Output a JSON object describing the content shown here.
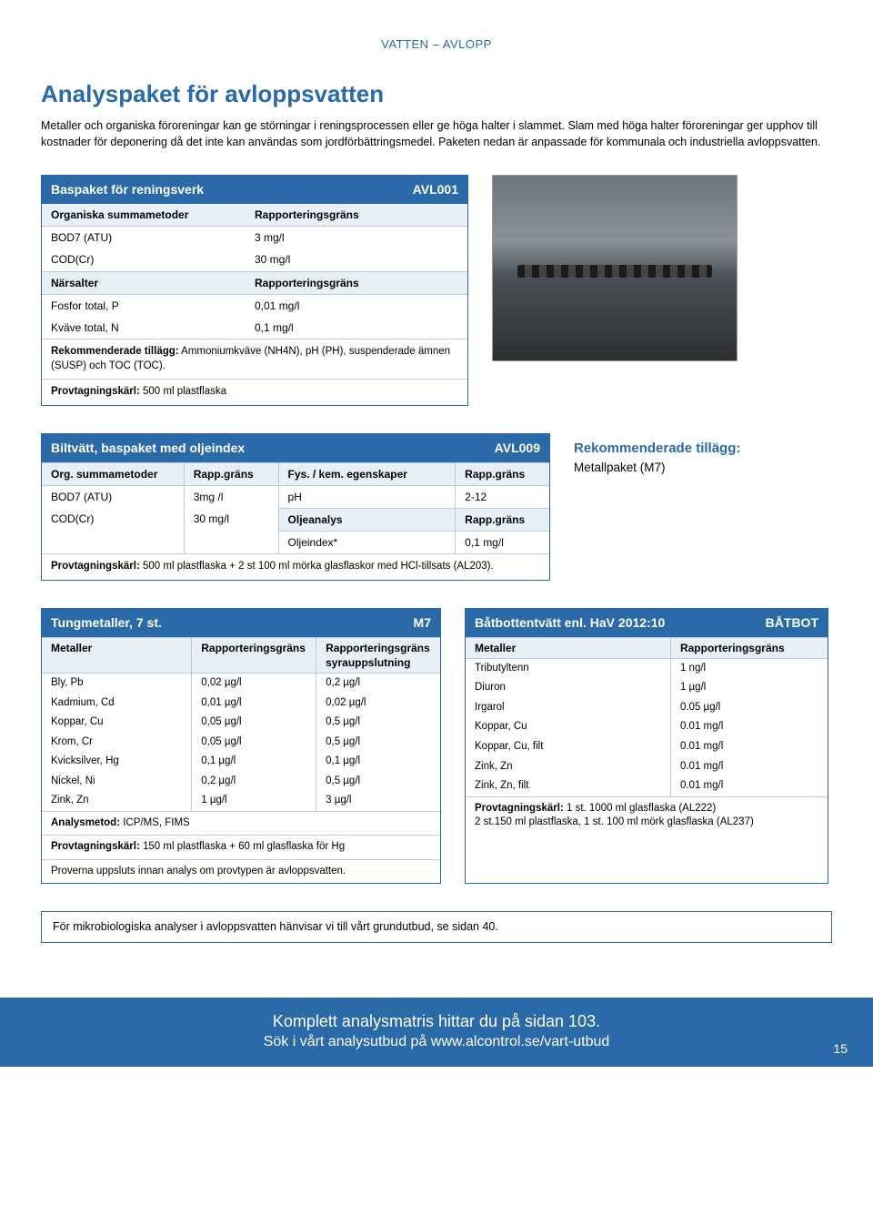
{
  "topcat": "VATTEN – AVLOPP",
  "h1": "Analyspaket för avloppsvatten",
  "intro": "Metaller och organiska föroreningar kan ge störningar i reningsprocessen eller ge höga halter i slammet. Slam med höga halter föroreningar ger upphov till kostnader för deponering då det inte kan användas som jordförbättringsmedel. Paketen nedan är anpassade för kommunala och industriella avloppsvatten.",
  "bas": {
    "title": "Baspaket för reningsverk",
    "code": "AVL001",
    "sh1a": "Organiska summametoder",
    "sh1b": "Rapporteringsgräns",
    "r1a": "BOD7 (ATU)",
    "r1b": "3 mg/l",
    "r2a": "COD(Cr)",
    "r2b": "30 mg/l",
    "sh2a": "Närsalter",
    "sh2b": "Rapporteringsgräns",
    "r3a": "Fosfor total, P",
    "r3b": "0,01 mg/l",
    "r4a": "Kväve total, N",
    "r4b": "0,1 mg/l",
    "n1": "Rekommenderade tillägg: Ammoniumkväve (NH4N), pH (PH), suspenderade ämnen (SUSP) och TOC (TOC).",
    "n2": "Provtagningskärl: 500 ml plastflaska"
  },
  "bil": {
    "title": "Biltvätt, baspaket med oljeindex",
    "code": "AVL009",
    "h1": "Org. summametoder",
    "h2": "Rapp.gräns",
    "h3": "Fys. / kem. egenskaper",
    "h4": "Rapp.gräns",
    "r1a": "BOD7 (ATU)",
    "r1b": "3mg /l",
    "r1c": "pH",
    "r1d": "2-12",
    "r2a": "COD(Cr)",
    "r2b": "30 mg/l",
    "r2c": "Oljeanalys",
    "r2d": "Rapp.gräns",
    "r3c": "Oljeindex*",
    "r3d": "0,1 mg/l",
    "note": "Provtagningskärl: 500 ml plastflaska + 2 st 100 ml mörka glasflaskor med HCl-tillsats (AL203)."
  },
  "rek": {
    "t": "Rekommenderade tillägg:",
    "b": "Metallpaket (M7)"
  },
  "m7": {
    "title": "Tungmetaller, 7 st.",
    "code": "M7",
    "h1": "Metaller",
    "h2": "Rapporteringsgräns",
    "h3": "Rapporteringsgräns syrauppslutning",
    "rows": [
      [
        "Bly, Pb",
        "0,02 µg/l",
        "0,2 µg/l"
      ],
      [
        "Kadmium, Cd",
        "0,01 µg/l",
        "0,02 µg/l"
      ],
      [
        "Koppar, Cu",
        "0,05 µg/l",
        "0,5 µg/l"
      ],
      [
        "Krom, Cr",
        "0,05 µg/l",
        "0,5 µg/l"
      ],
      [
        "Kvicksilver, Hg",
        "0,1 µg/l",
        "0,1 µg/l"
      ],
      [
        "Nickel, Ni",
        "0,2 µg/l",
        "0,5 µg/l"
      ],
      [
        "Zink, Zn",
        "1 µg/l",
        "3 µg/l"
      ]
    ],
    "n1": "Analysmetod: ICP/MS, FIMS",
    "n2": "Provtagningskärl: 150 ml plastflaska + 60 ml glasflaska för Hg",
    "n3": "Proverna uppsluts innan analys om provtypen är avloppsvatten."
  },
  "bat": {
    "title": "Båtbottentvätt enl. HaV 2012:10",
    "code": "BÅTBOT",
    "h1": "Metaller",
    "h2": "Rapporteringsgräns",
    "rows": [
      [
        "Tributyltenn",
        "1 ng/l"
      ],
      [
        "Diuron",
        "1 µg/l"
      ],
      [
        "Irgarol",
        "0.05 µg/l"
      ],
      [
        "Koppar, Cu",
        "0.01 mg/l"
      ],
      [
        "Koppar, Cu, filt",
        "0.01 mg/l"
      ],
      [
        "Zink, Zn",
        "0.01 mg/l"
      ],
      [
        "Zink, Zn, filt",
        "0.01 mg/l"
      ]
    ],
    "n1": "Provtagningskärl: 1 st. 1000 ml glasflaska (AL222) 2 st.150 ml plastflaska, 1 st. 100 ml mörk glasflaska (AL237)"
  },
  "mikro": "För mikrobiologiska analyser i avloppsvatten hänvisar vi till vårt grundutbud, se sidan 40.",
  "footer": {
    "l1": "Komplett analysmatris hittar du på sidan 103.",
    "l2": "Sök i vårt analysutbud på www.alcontrol.se/vart-utbud",
    "pg": "15"
  }
}
